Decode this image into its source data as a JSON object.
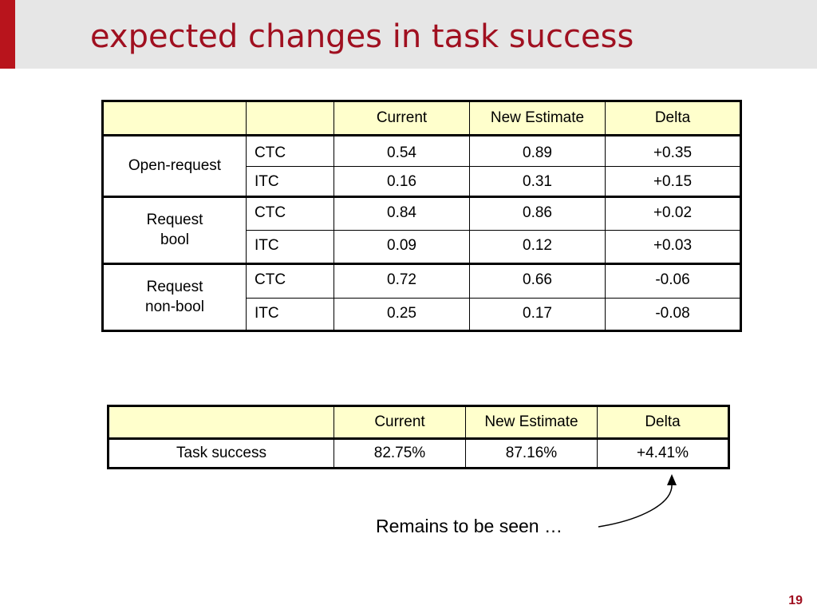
{
  "slide": {
    "title": "expected changes in task success",
    "page_number": "19",
    "note": "Remains to be seen …"
  },
  "table1": {
    "headers": [
      "",
      "",
      "Current",
      "New Estimate",
      "Delta"
    ],
    "groups": [
      {
        "label": "Open-request",
        "rows": [
          {
            "metric": "CTC",
            "current": "0.54",
            "new_estimate": "0.89",
            "delta": "+0.35"
          },
          {
            "metric": "ITC",
            "current": "0.16",
            "new_estimate": "0.31",
            "delta": "+0.15"
          }
        ]
      },
      {
        "label": "Request\nbool",
        "rows": [
          {
            "metric": "CTC",
            "current": "0.84",
            "new_estimate": "0.86",
            "delta": "+0.02"
          },
          {
            "metric": "ITC",
            "current": "0.09",
            "new_estimate": "0.12",
            "delta": "+0.03"
          }
        ]
      },
      {
        "label": "Request\nnon-bool",
        "rows": [
          {
            "metric": "CTC",
            "current": "0.72",
            "new_estimate": "0.66",
            "delta": "-0.06"
          },
          {
            "metric": "ITC",
            "current": "0.25",
            "new_estimate": "0.17",
            "delta": "-0.08"
          }
        ]
      }
    ]
  },
  "table2": {
    "headers": [
      "",
      "Current",
      "New Estimate",
      "Delta"
    ],
    "rows": [
      {
        "label": "Task success",
        "current": "82.75%",
        "new_estimate": "87.16%",
        "delta": "+4.41%"
      }
    ]
  },
  "colors": {
    "title": "#a01020",
    "accent_bar": "#b8141c",
    "header_fill": "#ffffcc",
    "title_band": "#e6e6e6"
  }
}
